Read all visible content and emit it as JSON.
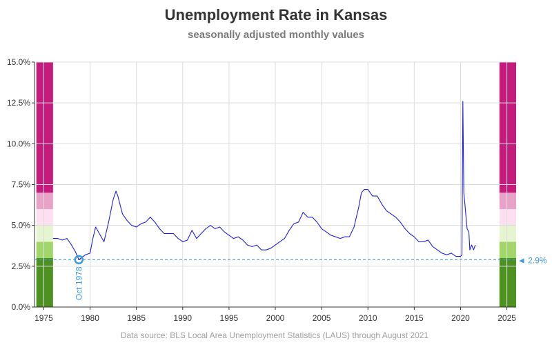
{
  "chart_data": {
    "type": "line",
    "title": "Unemployment Rate in Kansas",
    "subtitle": "seasonally adjusted monthly values",
    "source": "Data source: BLS Local Area Unemployment Statistics (LAUS) through August 2021",
    "xlabel": "",
    "ylabel": "",
    "xlim": [
      1974,
      2026
    ],
    "ylim": [
      0,
      15
    ],
    "x_ticks": [
      "1975",
      "1980",
      "1985",
      "1990",
      "1995",
      "2000",
      "2005",
      "2010",
      "2015",
      "2020",
      "2025"
    ],
    "y_ticks": [
      "0.0%",
      "2.5%",
      "5.0%",
      "7.5%",
      "10.0%",
      "12.5%",
      "15.0%"
    ],
    "grid": true,
    "line_color": "#1f1fe0",
    "series": [
      {
        "x": [
          1976.0,
          1976.5,
          1977.0,
          1977.5,
          1978.0,
          1978.4,
          1978.79,
          1979.0,
          1979.5,
          1980.0,
          1980.3,
          1980.6,
          1981.0,
          1981.5,
          1982.0,
          1982.5,
          1982.8,
          1983.0,
          1983.5,
          1984.0,
          1984.5,
          1985.0,
          1985.5,
          1986.0,
          1986.5,
          1987.0,
          1987.5,
          1988.0,
          1989.0,
          1989.5,
          1990.0,
          1990.5,
          1991.0,
          1991.5,
          1992.0,
          1992.5,
          1993.0,
          1993.5,
          1994.0,
          1994.5,
          1995.0,
          1995.5,
          1996.0,
          1996.5,
          1997.0,
          1997.5,
          1998.0,
          1998.5,
          1999.0,
          1999.5,
          2000.0,
          2000.5,
          2001.0,
          2001.5,
          2002.0,
          2002.5,
          2003.0,
          2003.5,
          2004.0,
          2004.5,
          2005.0,
          2005.5,
          2006.0,
          2006.5,
          2007.0,
          2007.5,
          2008.0,
          2008.5,
          2009.0,
          2009.3,
          2009.6,
          2010.0,
          2010.5,
          2011.0,
          2011.5,
          2012.0,
          2012.5,
          2013.0,
          2013.5,
          2014.0,
          2014.5,
          2015.0,
          2015.5,
          2016.0,
          2016.5,
          2017.0,
          2017.5,
          2018.0,
          2018.5,
          2019.0,
          2019.5,
          2020.0,
          2020.15,
          2020.25,
          2020.35,
          2020.5,
          2020.7,
          2020.9,
          2021.0,
          2021.2,
          2021.4,
          2021.6
        ],
        "y": [
          4.2,
          4.2,
          4.1,
          4.2,
          3.8,
          3.4,
          2.9,
          3.0,
          3.2,
          3.3,
          4.2,
          4.9,
          4.5,
          4.0,
          5.2,
          6.6,
          7.1,
          6.8,
          5.7,
          5.3,
          5.0,
          4.9,
          5.1,
          5.2,
          5.5,
          5.2,
          4.8,
          4.5,
          4.5,
          4.2,
          4.0,
          4.1,
          4.7,
          4.2,
          4.5,
          4.8,
          5.0,
          4.8,
          4.9,
          4.6,
          4.4,
          4.2,
          4.3,
          4.1,
          3.8,
          3.7,
          3.8,
          3.5,
          3.5,
          3.6,
          3.8,
          4.0,
          4.2,
          4.7,
          5.1,
          5.2,
          5.8,
          5.5,
          5.5,
          5.2,
          4.8,
          4.6,
          4.4,
          4.3,
          4.2,
          4.3,
          4.3,
          4.9,
          6.1,
          7.0,
          7.2,
          7.2,
          6.8,
          6.8,
          6.3,
          5.9,
          5.7,
          5.5,
          5.2,
          4.8,
          4.5,
          4.3,
          4.0,
          4.0,
          4.1,
          3.7,
          3.5,
          3.3,
          3.2,
          3.3,
          3.1,
          3.1,
          3.2,
          12.6,
          7.0,
          6.1,
          4.8,
          4.6,
          3.5,
          3.8,
          3.5,
          3.8
        ]
      }
    ],
    "reference_line": {
      "value": 2.9,
      "label": "◄ 2.9%"
    },
    "min_marker": {
      "x": 1978.79,
      "y": 2.9,
      "label": "Oct 1978"
    },
    "color_bands": [
      {
        "from": 0,
        "to": 3,
        "color": "#4d9221"
      },
      {
        "from": 3,
        "to": 4,
        "color": "#a1d76a"
      },
      {
        "from": 4,
        "to": 5,
        "color": "#e6f5d0"
      },
      {
        "from": 5,
        "to": 6,
        "color": "#fde0ef"
      },
      {
        "from": 6,
        "to": 7,
        "color": "#e9a3c9"
      },
      {
        "from": 7,
        "to": 15,
        "color": "#c51b7d"
      }
    ]
  }
}
